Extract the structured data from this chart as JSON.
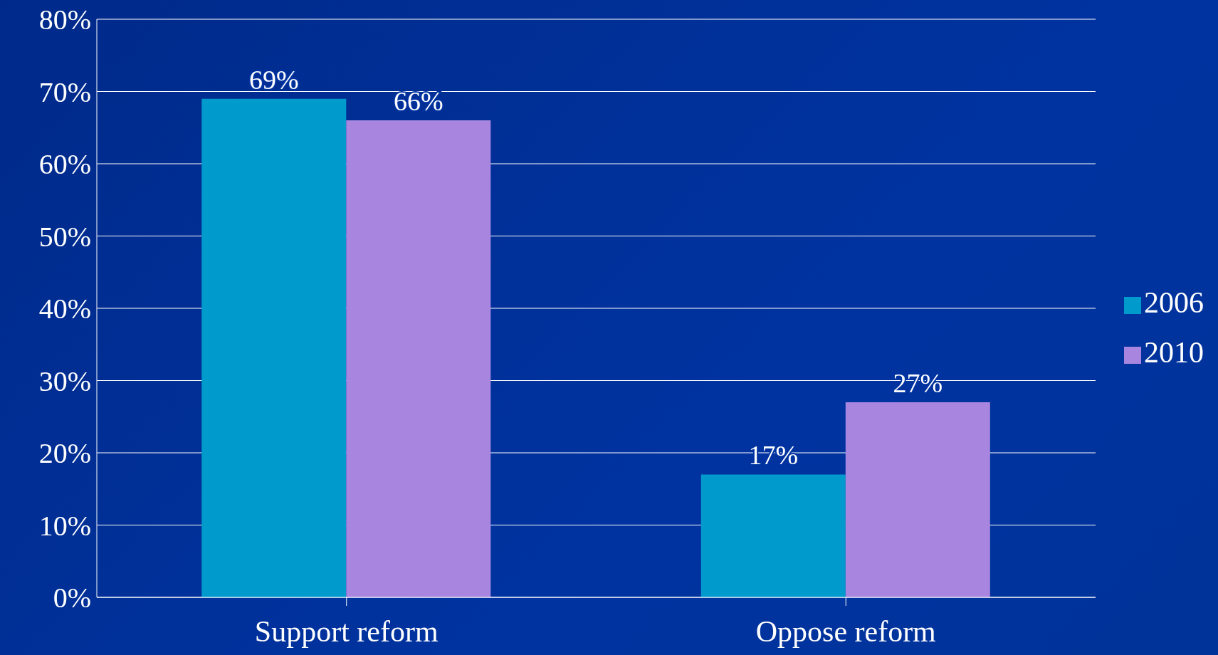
{
  "chart_data": {
    "type": "bar",
    "categories": [
      "Support reform",
      "Oppose reform"
    ],
    "series": [
      {
        "name": "2006",
        "color": "#009acd",
        "values": [
          69,
          17
        ],
        "value_labels": [
          "69%",
          "17%"
        ]
      },
      {
        "name": "2010",
        "color": "#a886e0",
        "values": [
          66,
          27
        ],
        "value_labels": [
          "66%",
          "27%"
        ]
      }
    ],
    "ylim": [
      0,
      80
    ],
    "yticks": [
      {
        "value": 0,
        "label": "0%"
      },
      {
        "value": 10,
        "label": "10%"
      },
      {
        "value": 20,
        "label": "20%"
      },
      {
        "value": 30,
        "label": "30%"
      },
      {
        "value": 40,
        "label": "40%"
      },
      {
        "value": 50,
        "label": "50%"
      },
      {
        "value": 60,
        "label": "60%"
      },
      {
        "value": 70,
        "label": "70%"
      },
      {
        "value": 80,
        "label": "80%"
      }
    ],
    "grid": "y",
    "legend": "right"
  }
}
